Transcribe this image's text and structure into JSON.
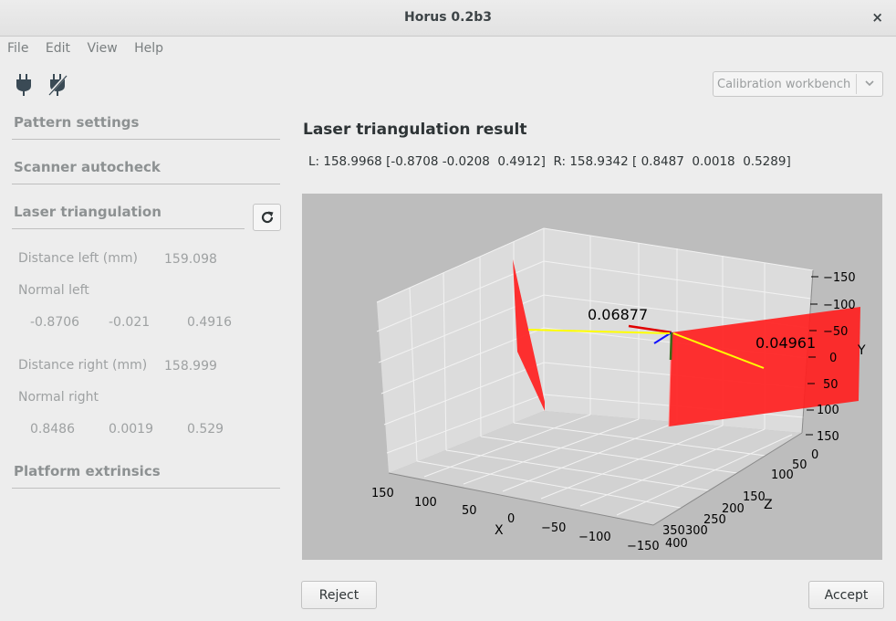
{
  "window": {
    "title": "Horus 0.2b3",
    "close_glyph": "×"
  },
  "menu": [
    "File",
    "Edit",
    "View",
    "Help"
  ],
  "toolbar": {
    "connect_icon": "plug-icon",
    "disconnect_icon": "plug-slash-icon"
  },
  "workbench": {
    "selected": "Calibration workbench"
  },
  "sidebar": {
    "sections": {
      "pattern": "Pattern settings",
      "autocheck": "Scanner autocheck",
      "laser": "Laser triangulation",
      "platform": "Platform extrinsics"
    },
    "distance_left_label": "Distance left (mm)",
    "distance_left_value": "159.098",
    "normal_left_label": "Normal left",
    "normal_left": [
      "-0.8706",
      "-0.021",
      "0.4916"
    ],
    "distance_right_label": "Distance right (mm)",
    "distance_right_value": "158.999",
    "normal_right_label": "Normal right",
    "normal_right": [
      "0.8486",
      "0.0019",
      "0.529"
    ]
  },
  "result": {
    "title": "Laser triangulation result",
    "line": "L: 158.9968 [-0.8708 -0.0208  0.4912]  R: 158.9342 [ 0.8487  0.0018  0.5289]"
  },
  "plot": {
    "annotation_left": "0.06877",
    "annotation_right": "0.04961",
    "x_label": "X",
    "y_label": "Y",
    "z_label": "Z",
    "x_ticks": [
      "150",
      "100",
      "50",
      "0",
      "−50",
      "−100",
      "−150"
    ],
    "y_ticks": [
      "−150",
      "−100",
      "−50",
      "0",
      "50",
      "100",
      "150"
    ],
    "z_ticks": [
      "0",
      "50",
      "100",
      "150",
      "200",
      "250",
      "300",
      "350",
      "400"
    ]
  },
  "buttons": {
    "reject": "Reject",
    "accept": "Accept"
  },
  "colors": {
    "plane": "#ff2020",
    "axis_line": "#ffff00",
    "plot_bg": "#bdbdbd"
  }
}
